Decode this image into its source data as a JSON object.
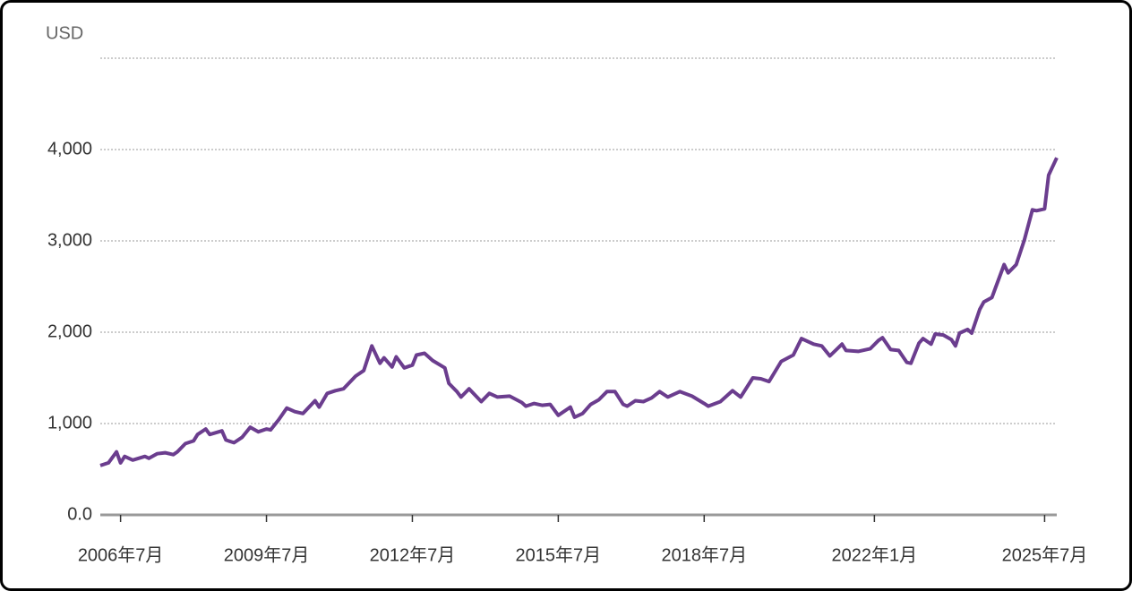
{
  "chart_data": {
    "type": "line",
    "y_axis_label": "USD",
    "x": [
      "2006-02",
      "2006-04",
      "2006-06",
      "2006-07",
      "2006-08",
      "2006-10",
      "2007-01",
      "2007-02",
      "2007-04",
      "2007-06",
      "2007-08",
      "2007-09",
      "2007-11",
      "2008-01",
      "2008-02",
      "2008-04",
      "2008-05",
      "2008-08",
      "2008-09",
      "2008-11",
      "2009-01",
      "2009-03",
      "2009-05",
      "2009-07",
      "2009-08",
      "2009-10",
      "2009-12",
      "2010-02",
      "2010-04",
      "2010-07",
      "2010-08",
      "2010-10",
      "2010-12",
      "2011-02",
      "2011-05",
      "2011-07",
      "2011-09",
      "2011-11",
      "2011-12",
      "2012-02",
      "2012-03",
      "2012-05",
      "2012-07",
      "2012-08",
      "2012-10",
      "2012-12",
      "2013-03",
      "2013-04",
      "2013-06",
      "2013-07",
      "2013-09",
      "2013-12",
      "2014-02",
      "2014-04",
      "2014-07",
      "2014-10",
      "2014-11",
      "2015-01",
      "2015-03",
      "2015-05",
      "2015-07",
      "2015-10",
      "2015-11",
      "2016-01",
      "2016-03",
      "2016-05",
      "2016-07",
      "2016-09",
      "2016-11",
      "2016-12",
      "2017-02",
      "2017-04",
      "2017-06",
      "2017-08",
      "2017-10",
      "2018-01",
      "2018-04",
      "2018-07",
      "2018-08",
      "2018-11",
      "2019-02",
      "2019-04",
      "2019-07",
      "2019-09",
      "2019-11",
      "2020-02",
      "2020-05",
      "2020-07",
      "2020-10",
      "2020-12",
      "2021-02",
      "2021-05",
      "2021-06",
      "2021-09",
      "2021-12",
      "2022-02",
      "2022-03",
      "2022-05",
      "2022-07",
      "2022-09",
      "2022-10",
      "2022-12",
      "2023-01",
      "2023-03",
      "2023-04",
      "2023-06",
      "2023-08",
      "2023-09",
      "2023-10",
      "2023-12",
      "2024-01",
      "2024-03",
      "2024-04",
      "2024-06",
      "2024-07",
      "2024-09",
      "2024-10",
      "2024-12",
      "2025-02",
      "2025-04",
      "2025-05",
      "2025-07",
      "2025-08",
      "2025-10"
    ],
    "series": [
      {
        "color": "#6b3d8e",
        "values": [
          540,
          570,
          690,
          570,
          640,
          600,
          640,
          620,
          670,
          680,
          660,
          690,
          780,
          810,
          880,
          940,
          880,
          920,
          820,
          790,
          850,
          960,
          910,
          940,
          930,
          1040,
          1170,
          1130,
          1110,
          1250,
          1180,
          1330,
          1360,
          1380,
          1520,
          1580,
          1850,
          1660,
          1720,
          1620,
          1730,
          1610,
          1640,
          1750,
          1770,
          1690,
          1610,
          1440,
          1350,
          1290,
          1380,
          1240,
          1330,
          1290,
          1300,
          1230,
          1190,
          1220,
          1200,
          1210,
          1090,
          1180,
          1070,
          1110,
          1210,
          1260,
          1350,
          1350,
          1210,
          1190,
          1250,
          1240,
          1280,
          1350,
          1290,
          1350,
          1300,
          1220,
          1190,
          1240,
          1360,
          1290,
          1500,
          1490,
          1460,
          1680,
          1750,
          1930,
          1870,
          1850,
          1740,
          1870,
          1800,
          1790,
          1820,
          1910,
          1940,
          1810,
          1800,
          1670,
          1660,
          1880,
          1930,
          1870,
          1980,
          1970,
          1920,
          1850,
          1990,
          2030,
          1990,
          2250,
          2330,
          2380,
          2500,
          2740,
          2650,
          2740,
          3010,
          3340,
          3330,
          3350,
          3720,
          3910
        ]
      }
    ],
    "xlim": [
      "2006-02",
      "2025-10"
    ],
    "xticks": [
      {
        "value": "2006-07",
        "label": "2006年7月"
      },
      {
        "value": "2009-07",
        "label": "2009年7月"
      },
      {
        "value": "2012-07",
        "label": "2012年7月"
      },
      {
        "value": "2015-07",
        "label": "2015年7月"
      },
      {
        "value": "2018-07",
        "label": "2018年7月"
      },
      {
        "value": "2022-01",
        "label": "2022年1月"
      },
      {
        "value": "2025-07",
        "label": "2025年7月"
      }
    ],
    "ylim": [
      0,
      5000
    ],
    "yticks": [
      {
        "value": 0,
        "label": "0.0"
      },
      {
        "value": 1000,
        "label": "1,000"
      },
      {
        "value": 2000,
        "label": "2,000"
      },
      {
        "value": 3000,
        "label": "3,000"
      },
      {
        "value": 4000,
        "label": "4,000"
      }
    ],
    "grid": true
  }
}
